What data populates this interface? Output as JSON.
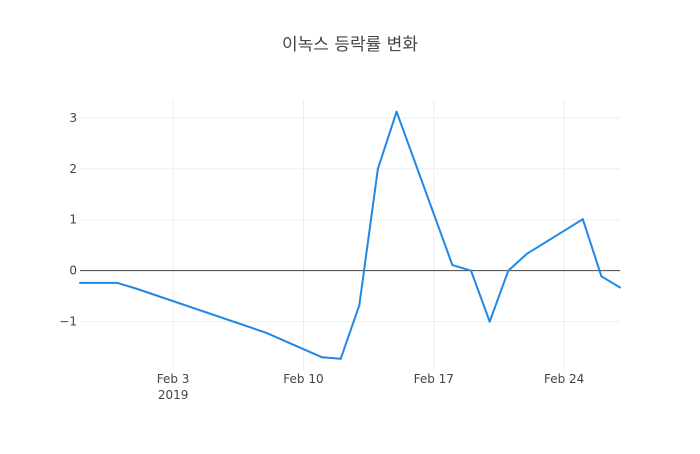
{
  "chart_data": {
    "type": "line",
    "title": "이녹스 등락률 변화",
    "xlabel": "",
    "ylabel": "",
    "x_ticks": [
      {
        "date": "2019-02-03",
        "label": "Feb 3",
        "sublabel": "2019"
      },
      {
        "date": "2019-02-10",
        "label": "Feb 10",
        "sublabel": ""
      },
      {
        "date": "2019-02-17",
        "label": "Feb 17",
        "sublabel": ""
      },
      {
        "date": "2019-02-24",
        "label": "Feb 24",
        "sublabel": ""
      }
    ],
    "y_ticks": [
      {
        "value": 3,
        "label": "3"
      },
      {
        "value": 2,
        "label": "2"
      },
      {
        "value": 1,
        "label": "1"
      },
      {
        "value": 0,
        "label": "0"
      },
      {
        "value": -1,
        "label": "−1"
      }
    ],
    "xlim": [
      "2019-01-29",
      "2019-02-27"
    ],
    "ylim": [
      -1.95,
      3.35
    ],
    "grid": true,
    "zero_line": true,
    "line_color": "#1f88e5",
    "series": [
      {
        "x": [
          "2019-01-29",
          "2019-01-31",
          "2019-02-01",
          "2019-02-08",
          "2019-02-11",
          "2019-02-12",
          "2019-02-13",
          "2019-02-14",
          "2019-02-15",
          "2019-02-18",
          "2019-02-19",
          "2019-02-20",
          "2019-02-21",
          "2019-02-22",
          "2019-02-25",
          "2019-02-26",
          "2019-02-27"
        ],
        "y": [
          -0.24,
          -0.24,
          -0.35,
          -1.22,
          -1.7,
          -1.73,
          -0.68,
          2.0,
          3.12,
          0.11,
          0.0,
          -1.0,
          0.0,
          0.33,
          1.01,
          -0.11,
          -0.33
        ]
      }
    ]
  }
}
